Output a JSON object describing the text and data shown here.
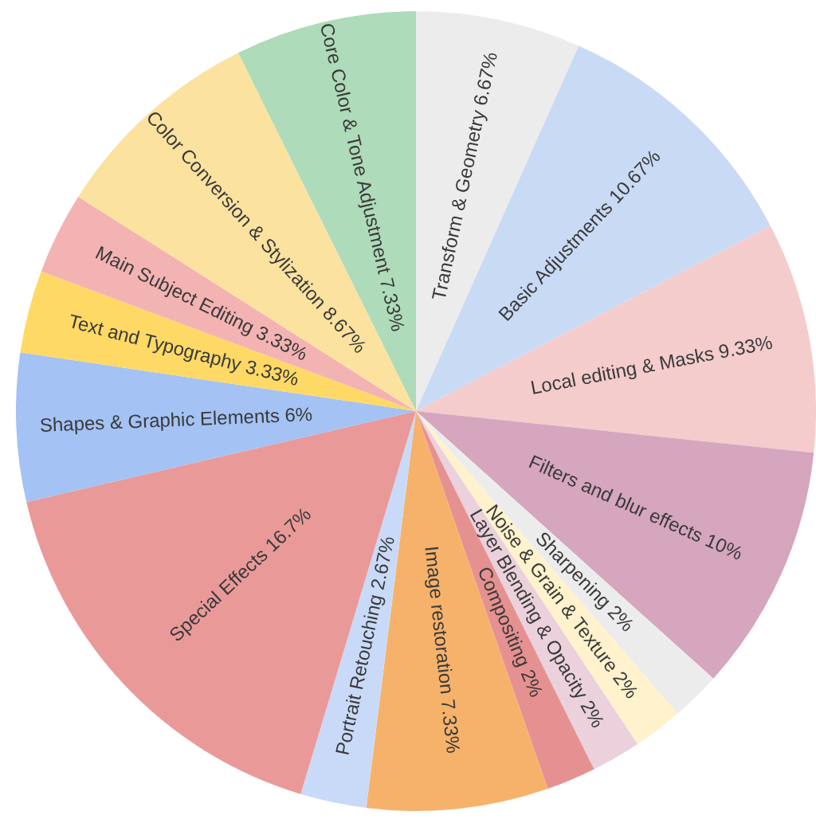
{
  "chart_data": {
    "type": "pie",
    "categories": [
      "Transform & Geometry",
      "Basic Adjustments",
      "Local editing & Masks",
      "Filters and blur effects",
      "Sharpening",
      "Noise & Grain & Texture",
      "Layer Blending & Opacity",
      "Compositing",
      "Image restoration",
      "Portrait Retouching",
      "Special Effects",
      "Shapes & Graphic Elements",
      "Text and Typography",
      "Main Subject Editing",
      "Color Conversion & Stylization",
      "Core Color & Tone Adjustment"
    ],
    "values": [
      6.67,
      10.67,
      9.33,
      10,
      2,
      2,
      2,
      2,
      7.33,
      2.67,
      16.7,
      6,
      3.33,
      3.33,
      8.67,
      7.33
    ],
    "value_labels": [
      "6.67%",
      "10.67%",
      "9.33%",
      "10%",
      "2%",
      "2%",
      "2%",
      "2%",
      "7.33%",
      "2.67%",
      "16.7%",
      "6%",
      "3.33%",
      "3.33%",
      "8.67%",
      "7.33%"
    ],
    "colors": [
      "#ececec",
      "#c9daf5",
      "#f4cccc",
      "#d5a6bd",
      "#ececec",
      "#fff2cc",
      "#ead1dc",
      "#e69191",
      "#f6b26b",
      "#c9daf8",
      "#ea9999",
      "#a4c2f4",
      "#ffd966",
      "#f4b3b3",
      "#fce29f",
      "#aedbb9"
    ],
    "legend": false
  }
}
